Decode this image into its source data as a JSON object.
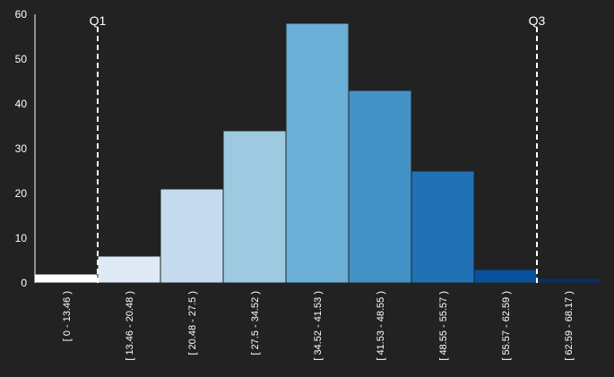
{
  "chart_data": {
    "type": "bar",
    "title": "",
    "xlabel": "",
    "ylabel": "",
    "ylim": [
      0,
      60
    ],
    "yticks": [
      0,
      10,
      20,
      30,
      40,
      50,
      60
    ],
    "grid": false,
    "categories": [
      "[ 0 - 13.46 )",
      "[ 13.46 - 20.48 )",
      "[ 20.48 - 27.5 )",
      "[ 27.5 - 34.52 )",
      "[ 34.52 - 41.53 )",
      "[ 41.53 - 48.55 )",
      "[ 48.55 - 55.57 )",
      "[ 55.57 - 62.59 )",
      "[ 62.59 - 68.17 )"
    ],
    "values": [
      2,
      6,
      21,
      34,
      58,
      43,
      25,
      3,
      1
    ],
    "colors": [
      "#ffffff",
      "#deebf7",
      "#c6dbef",
      "#9ecae1",
      "#6baed6",
      "#4292c6",
      "#2171b5",
      "#08519c",
      "#08306b"
    ],
    "quartiles": [
      {
        "label": "Q1",
        "category_index": 1
      },
      {
        "label": "Q3",
        "category_index": 8
      }
    ]
  }
}
